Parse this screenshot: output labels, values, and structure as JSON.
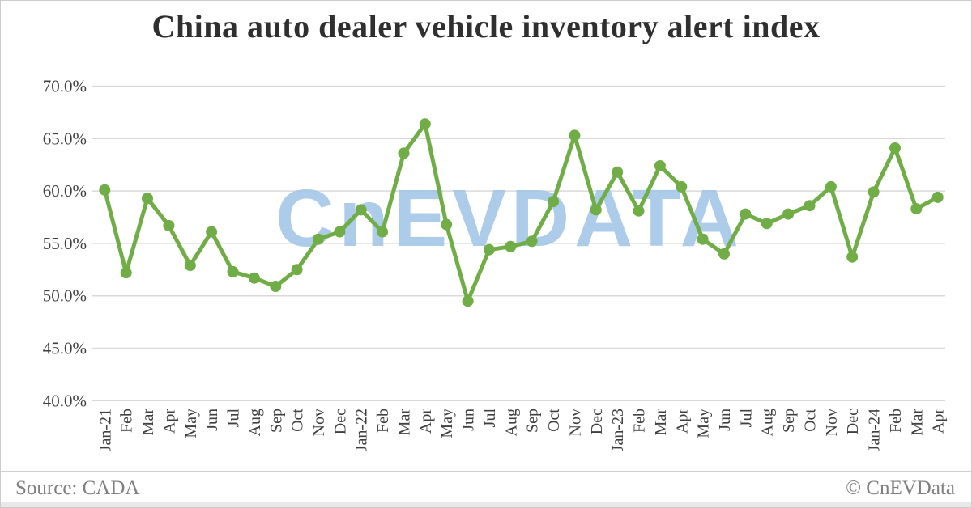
{
  "card": {
    "watermark_text": "CnEVDATA",
    "source_label": "Source: CADA",
    "copyright_label": "© CnEVData"
  },
  "colors": {
    "line": "#70ad47",
    "marker": "#70ad47",
    "watermark": "#9dc3e6",
    "grid": "#d9d9d9",
    "title_text": "#2f2f2f",
    "axis_text": "#404040",
    "footer_text": "#7f7f7f"
  },
  "chart_data": {
    "type": "line",
    "title": "China auto dealer vehicle inventory alert index",
    "x_labels": [
      "Jan-21",
      "Feb",
      "Mar",
      "Apr",
      "May",
      "Jun",
      "Jul",
      "Aug",
      "Sep",
      "Oct",
      "Nov",
      "Dec",
      "Jan-22",
      "Feb",
      "Mar",
      "Apr",
      "May",
      "Jun",
      "Jul",
      "Aug",
      "Sep",
      "Oct",
      "Nov",
      "Dec",
      "Jan-23",
      "Feb",
      "Mar",
      "Apr",
      "May",
      "Jun",
      "Jul",
      "Aug",
      "Sep",
      "Oct",
      "Nov",
      "Dec",
      "Jan-24",
      "Feb",
      "Mar",
      "Apr"
    ],
    "series": [
      {
        "name": "inventory_alert_index_pct",
        "values": [
          60.1,
          52.2,
          59.3,
          56.7,
          52.9,
          56.1,
          52.3,
          51.7,
          50.9,
          52.5,
          55.4,
          56.1,
          58.2,
          56.1,
          63.6,
          66.4,
          56.8,
          49.5,
          54.4,
          54.7,
          55.2,
          59.0,
          65.3,
          58.2,
          61.8,
          58.1,
          62.4,
          60.4,
          55.4,
          54.0,
          57.8,
          56.9,
          57.8,
          58.6,
          60.4,
          53.7,
          59.9,
          64.1,
          58.3,
          59.4
        ]
      }
    ],
    "ylim": [
      40,
      70
    ],
    "yticks": [
      70,
      65,
      60,
      55,
      50,
      45,
      40
    ],
    "ytick_suffix": "%",
    "ytick_decimals": 1,
    "grid": "horizontal",
    "legend": false,
    "xlabel": "",
    "ylabel": "",
    "source": "CADA",
    "watermark": "CnEVDATA"
  }
}
